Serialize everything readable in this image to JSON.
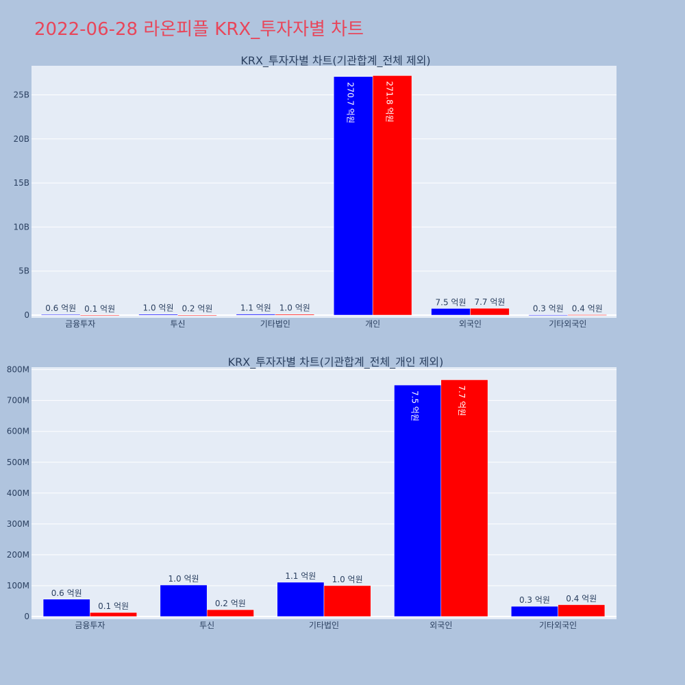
{
  "page_title": "2022-06-28 라온피플 KRX_투자자별 차트",
  "colors": {
    "buy": "#0000ff",
    "sell": "#ff0000",
    "plot_bg": "#e5ecf6",
    "page_bg": "#b0c4de",
    "grid": "#ffffff",
    "title": "#e8465a"
  },
  "chart_data": [
    {
      "type": "bar",
      "title": "KRX_투자자별 차트(기관합계_전체 제외)",
      "categories": [
        "금융투자",
        "투신",
        "기타법인",
        "개인",
        "외국인",
        "기타외국인"
      ],
      "series": [
        {
          "values": [
            0.06,
            0.1,
            0.11,
            27.07,
            0.75,
            0.03
          ],
          "labels": [
            "0.6 억원",
            "1.0 억원",
            "1.1 억원",
            "270.7 억원",
            "7.5 억원",
            "0.3 억원"
          ]
        },
        {
          "values": [
            0.01,
            0.02,
            0.1,
            27.18,
            0.77,
            0.04
          ],
          "labels": [
            "0.1 억원",
            "0.2 억원",
            "1.0 억원",
            "271.8 억원",
            "7.7 억원",
            "0.4 억원"
          ]
        }
      ],
      "yunit": "B",
      "ylim": [
        0,
        28.3
      ],
      "yticks": [
        0,
        5,
        10,
        15,
        20,
        25
      ],
      "ytick_labels": [
        "0",
        "5B",
        "10B",
        "15B",
        "20B",
        "25B"
      ],
      "grid": true
    },
    {
      "type": "bar",
      "title": "KRX_투자자별 차트(기관합계_전체_개인 제외)",
      "categories": [
        "금융투자",
        "투신",
        "기타법인",
        "외국인",
        "기타외국인"
      ],
      "series": [
        {
          "values": [
            56,
            102,
            111,
            750,
            33
          ],
          "labels": [
            "0.6 억원",
            "1.0 억원",
            "1.1 억원",
            "7.5 억원",
            "0.3 억원"
          ]
        },
        {
          "values": [
            13,
            22,
            100,
            767,
            38
          ],
          "labels": [
            "0.1 억원",
            "0.2 억원",
            "1.0 억원",
            "7.7 억원",
            "0.4 억원"
          ]
        }
      ],
      "yunit": "M",
      "ylim": [
        0,
        808
      ],
      "yticks": [
        0,
        100,
        200,
        300,
        400,
        500,
        600,
        700,
        800
      ],
      "ytick_labels": [
        "0",
        "100M",
        "200M",
        "300M",
        "400M",
        "500M",
        "600M",
        "700M",
        "800M"
      ],
      "grid": true
    }
  ]
}
